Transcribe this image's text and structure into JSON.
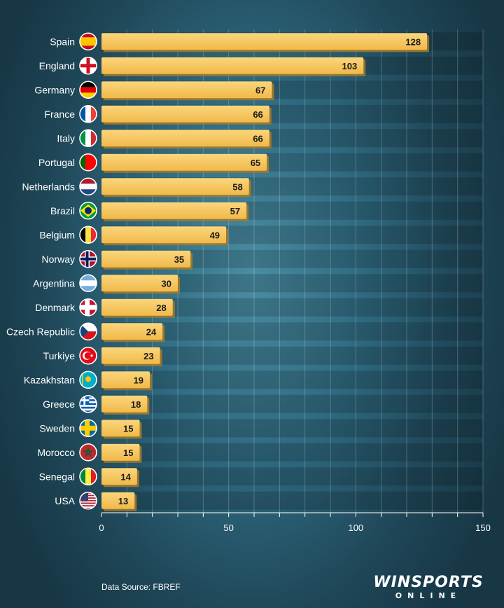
{
  "chart_data": {
    "type": "bar",
    "orientation": "horizontal",
    "categories": [
      "Spain",
      "England",
      "Germany",
      "France",
      "Italy",
      "Portugal",
      "Netherlands",
      "Brazil",
      "Belgium",
      "Norway",
      "Argentina",
      "Denmark",
      "Czech Republic",
      "Turkiye",
      "Kazakhstan",
      "Greece",
      "Sweden",
      "Morocco",
      "Senegal",
      "USA"
    ],
    "values": [
      128,
      103,
      67,
      66,
      66,
      65,
      58,
      57,
      49,
      35,
      30,
      28,
      24,
      23,
      19,
      18,
      15,
      15,
      14,
      13
    ],
    "xticks": [
      "0",
      "50",
      "100",
      "150"
    ],
    "xlim": [
      0,
      150
    ],
    "grid": true,
    "bar_color": "#f5c45e"
  },
  "flags": [
    {
      "country": "Spain",
      "icon": "spain-flag-icon",
      "type": "hbands",
      "colors": [
        "#c60b1e",
        "#ffc400",
        "#ffc400",
        "#c60b1e"
      ]
    },
    {
      "country": "England",
      "icon": "england-flag-icon",
      "type": "cross",
      "colors": [
        "#ffffff",
        "#ce1124"
      ]
    },
    {
      "country": "Germany",
      "icon": "germany-flag-icon",
      "type": "hbands",
      "colors": [
        "#000000",
        "#dd0000",
        "#ffce00"
      ]
    },
    {
      "country": "France",
      "icon": "france-flag-icon",
      "type": "vbands",
      "colors": [
        "#0055a4",
        "#ffffff",
        "#ef4135"
      ]
    },
    {
      "country": "Italy",
      "icon": "italy-flag-icon",
      "type": "vbands",
      "colors": [
        "#009246",
        "#ffffff",
        "#ce2b37"
      ]
    },
    {
      "country": "Portugal",
      "icon": "portugal-flag-icon",
      "type": "vbands",
      "colors": [
        "#006600",
        "#ff0000",
        "#ff0000"
      ]
    },
    {
      "country": "Netherlands",
      "icon": "netherlands-flag-icon",
      "type": "hbands",
      "colors": [
        "#ae1c28",
        "#ffffff",
        "#21468b"
      ]
    },
    {
      "country": "Brazil",
      "icon": "brazil-flag-icon",
      "type": "brazil",
      "colors": [
        "#009c3b",
        "#ffdf00",
        "#002776"
      ]
    },
    {
      "country": "Belgium",
      "icon": "belgium-flag-icon",
      "type": "vbands",
      "colors": [
        "#000000",
        "#fae042",
        "#ed2939"
      ]
    },
    {
      "country": "Norway",
      "icon": "norway-flag-icon",
      "type": "nordic",
      "colors": [
        "#ba0c2f",
        "#ffffff",
        "#00205b"
      ]
    },
    {
      "country": "Argentina",
      "icon": "argentina-flag-icon",
      "type": "hbands",
      "colors": [
        "#74acdf",
        "#ffffff",
        "#74acdf"
      ]
    },
    {
      "country": "Denmark",
      "icon": "denmark-flag-icon",
      "type": "nordic",
      "colors": [
        "#c8102e",
        "#ffffff",
        "#ffffff"
      ]
    },
    {
      "country": "Czech Republic",
      "icon": "czech-flag-icon",
      "type": "czech",
      "colors": [
        "#ffffff",
        "#d7141a",
        "#11457e"
      ]
    },
    {
      "country": "Turkiye",
      "icon": "turkiye-flag-icon",
      "type": "crescent",
      "colors": [
        "#e30a17",
        "#ffffff"
      ]
    },
    {
      "country": "Kazakhstan",
      "icon": "kazakhstan-flag-icon",
      "type": "sun",
      "colors": [
        "#00afca",
        "#fec50c"
      ]
    },
    {
      "country": "Greece",
      "icon": "greece-flag-icon",
      "type": "greece",
      "colors": [
        "#0d5eaf",
        "#ffffff"
      ]
    },
    {
      "country": "Sweden",
      "icon": "sweden-flag-icon",
      "type": "nordic",
      "colors": [
        "#006aa7",
        "#fecc00",
        "#fecc00"
      ]
    },
    {
      "country": "Morocco",
      "icon": "morocco-flag-icon",
      "type": "star",
      "colors": [
        "#c1272d",
        "#006233"
      ]
    },
    {
      "country": "Senegal",
      "icon": "senegal-flag-icon",
      "type": "vbands",
      "colors": [
        "#00853f",
        "#fdef42",
        "#e31b23"
      ]
    },
    {
      "country": "USA",
      "icon": "usa-flag-icon",
      "type": "usa",
      "colors": [
        "#b22234",
        "#ffffff",
        "#3c3b6e"
      ]
    }
  ],
  "source": "Data Source: FBREF",
  "logo": {
    "main": "WINSPORTS",
    "sub": "ONLINE"
  }
}
